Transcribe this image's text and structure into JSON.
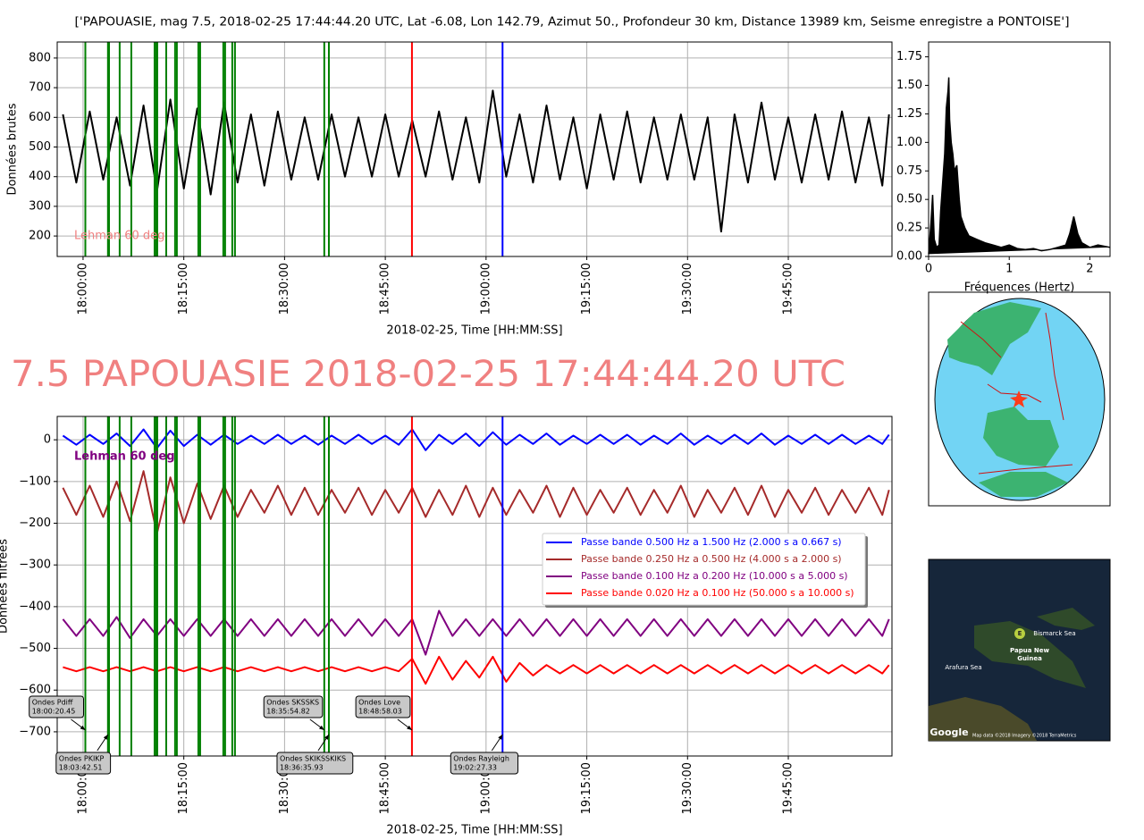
{
  "title": "['PAPOUASIE, mag 7.5, 2018-02-25 17:44:44.20 UTC, Lat -6.08, Lon 142.79, Azimut 50., Profondeur 30 km, Distance 13989 km, Seisme enregistre a PONTOISE']",
  "headline": "7.5 PAPOUASIE 2018-02-25 17:44:44.20 UTC",
  "chart_data": [
    {
      "type": "line",
      "y_label": "Données brutes",
      "x_label": "2018-02-25, Time [HH:MM:SS]",
      "annotation": {
        "text": "Lehman 60 deg",
        "color": "#f08080"
      },
      "x": [
        "17:57:00",
        "17:59:00",
        "18:01:00",
        "18:03:00",
        "18:05:00",
        "18:07:00",
        "18:09:00",
        "18:11:00",
        "18:13:00",
        "18:15:00",
        "18:17:00",
        "18:19:00",
        "18:21:00",
        "18:23:00",
        "18:25:00",
        "18:27:00",
        "18:29:00",
        "18:31:00",
        "18:33:00",
        "18:35:00",
        "18:37:00",
        "18:39:00",
        "18:41:00",
        "18:43:00",
        "18:45:00",
        "18:47:00",
        "18:49:00",
        "18:51:00",
        "18:53:00",
        "18:55:00",
        "18:57:00",
        "18:59:00",
        "19:01:00",
        "19:03:00",
        "19:05:00",
        "19:07:00",
        "19:09:00",
        "19:11:00",
        "19:13:00",
        "19:15:00",
        "19:17:00",
        "19:19:00",
        "19:21:00",
        "19:23:00",
        "19:25:00",
        "19:27:00",
        "19:29:00",
        "19:31:00",
        "19:33:00",
        "19:35:00",
        "19:37:00",
        "19:39:00",
        "19:41:00",
        "19:43:00",
        "19:45:00",
        "19:47:00",
        "19:49:00",
        "19:51:00",
        "19:53:00",
        "19:55:00",
        "19:57:00",
        "19:59:00",
        "20:00:00"
      ],
      "series": [
        {
          "color": "#000000",
          "values": [
            610,
            380,
            620,
            390,
            600,
            370,
            640,
            350,
            660,
            360,
            630,
            340,
            650,
            380,
            610,
            370,
            620,
            390,
            600,
            390,
            610,
            400,
            600,
            400,
            610,
            400,
            590,
            400,
            620,
            390,
            600,
            380,
            690,
            400,
            610,
            380,
            640,
            390,
            600,
            360,
            610,
            390,
            620,
            380,
            600,
            390,
            610,
            390,
            600,
            215,
            610,
            380,
            650,
            390,
            600,
            380,
            610,
            390,
            620,
            380,
            600,
            370,
            610
          ]
        }
      ],
      "xlim": [
        "17:56:09",
        "20:00:26"
      ],
      "xticks": [
        "18:00:00",
        "18:15:00",
        "18:30:00",
        "18:45:00",
        "19:00:00",
        "19:15:00",
        "19:30:00",
        "19:45:00"
      ],
      "ylim": [
        131,
        854
      ],
      "yticks": [
        200,
        300,
        400,
        500,
        600,
        700,
        800
      ],
      "grid": true
    },
    {
      "type": "area",
      "x_label": "Fréquences (Hertz)",
      "color": "#000000",
      "x": [
        0,
        0.03,
        0.05,
        0.07,
        0.1,
        0.13,
        0.15,
        0.18,
        0.2,
        0.22,
        0.24,
        0.25,
        0.26,
        0.28,
        0.3,
        0.32,
        0.35,
        0.38,
        0.4,
        0.45,
        0.5,
        0.6,
        0.7,
        0.8,
        0.9,
        1.0,
        1.1,
        1.2,
        1.3,
        1.4,
        1.5,
        1.6,
        1.7,
        1.75,
        1.8,
        1.85,
        1.9,
        2.0,
        2.1,
        2.25
      ],
      "values": [
        0.02,
        0.3,
        0.54,
        0.15,
        0.08,
        0.1,
        0.4,
        0.7,
        0.9,
        1.3,
        1.45,
        1.57,
        1.2,
        1.0,
        0.9,
        0.75,
        0.8,
        0.5,
        0.35,
        0.25,
        0.18,
        0.15,
        0.12,
        0.1,
        0.08,
        0.1,
        0.07,
        0.06,
        0.07,
        0.05,
        0.06,
        0.08,
        0.1,
        0.2,
        0.35,
        0.2,
        0.12,
        0.08,
        0.1,
        0.08
      ],
      "xlim": [
        0,
        2.25
      ],
      "xticks": [
        0,
        1,
        2
      ],
      "ylim": [
        0,
        1.88
      ],
      "yticks": [
        {
          "value": 0,
          "label": "0.00"
        },
        0.25,
        {
          "value": 0.5,
          "label": "0.50"
        },
        0.75,
        {
          "value": 1,
          "label": "1.00"
        },
        1.25,
        {
          "value": 1.5,
          "label": "1.50"
        },
        1.75
      ],
      "grid": false
    },
    {
      "type": "line",
      "y_label": "Données filtrées",
      "x_label": "2018-02-25, Time [HH:MM:SS]",
      "annotation": {
        "text": "Lehman 60 deg",
        "color": "#800080"
      },
      "x": [
        "17:57:00",
        "17:59:00",
        "18:01:00",
        "18:03:00",
        "18:05:00",
        "18:07:00",
        "18:09:00",
        "18:11:00",
        "18:13:00",
        "18:15:00",
        "18:17:00",
        "18:19:00",
        "18:21:00",
        "18:23:00",
        "18:25:00",
        "18:27:00",
        "18:29:00",
        "18:31:00",
        "18:33:00",
        "18:35:00",
        "18:37:00",
        "18:39:00",
        "18:41:00",
        "18:43:00",
        "18:45:00",
        "18:47:00",
        "18:49:00",
        "18:51:00",
        "18:53:00",
        "18:55:00",
        "18:57:00",
        "18:59:00",
        "19:01:00",
        "19:03:00",
        "19:05:00",
        "19:07:00",
        "19:09:00",
        "19:11:00",
        "19:13:00",
        "19:15:00",
        "19:17:00",
        "19:19:00",
        "19:21:00",
        "19:23:00",
        "19:25:00",
        "19:27:00",
        "19:29:00",
        "19:31:00",
        "19:33:00",
        "19:35:00",
        "19:37:00",
        "19:39:00",
        "19:41:00",
        "19:43:00",
        "19:45:00",
        "19:47:00",
        "19:49:00",
        "19:51:00",
        "19:53:00",
        "19:55:00",
        "19:57:00",
        "19:59:00",
        "20:00:00"
      ],
      "series": [
        {
          "name": "Passe bande 0.500 Hz a 1.500 Hz (2.000 s a 0.667 s)",
          "color": "#0000ff",
          "values": [
            10,
            -12,
            12,
            -10,
            15,
            -15,
            25,
            -20,
            22,
            -15,
            12,
            -12,
            12,
            -10,
            10,
            -10,
            12,
            -10,
            10,
            -12,
            10,
            -10,
            12,
            -10,
            10,
            -12,
            25,
            -25,
            12,
            -10,
            15,
            -15,
            18,
            -12,
            12,
            -10,
            15,
            -12,
            10,
            -10,
            12,
            -10,
            12,
            -12,
            10,
            -10,
            15,
            -12,
            10,
            -10,
            12,
            -10,
            15,
            -12,
            10,
            -10,
            12,
            -10,
            12,
            -10,
            10,
            -10,
            12
          ]
        },
        {
          "name": "Passe bande 0.250 Hz a 0.500 Hz (4.000 s a 2.000 s)",
          "color": "#a52a2a",
          "values": [
            -115,
            -180,
            -110,
            -185,
            -100,
            -195,
            -75,
            -225,
            -90,
            -200,
            -105,
            -190,
            -110,
            -185,
            -120,
            -175,
            -110,
            -180,
            -115,
            -180,
            -120,
            -175,
            -115,
            -180,
            -120,
            -175,
            -115,
            -185,
            -120,
            -180,
            -110,
            -185,
            -115,
            -180,
            -120,
            -175,
            -110,
            -185,
            -115,
            -180,
            -120,
            -175,
            -115,
            -180,
            -120,
            -175,
            -110,
            -185,
            -120,
            -175,
            -115,
            -180,
            -110,
            -185,
            -120,
            -175,
            -115,
            -180,
            -120,
            -175,
            -115,
            -180,
            -120
          ]
        },
        {
          "name": "Passe bande 0.100 Hz a 0.200 Hz (10.000 s a 5.000 s)",
          "color": "#800080",
          "values": [
            -430,
            -470,
            -430,
            -470,
            -425,
            -475,
            -430,
            -470,
            -430,
            -470,
            -430,
            -470,
            -430,
            -470,
            -430,
            -470,
            -430,
            -470,
            -430,
            -470,
            -430,
            -470,
            -430,
            -470,
            -430,
            -470,
            -430,
            -515,
            -410,
            -470,
            -430,
            -470,
            -430,
            -470,
            -430,
            -470,
            -430,
            -470,
            -430,
            -470,
            -430,
            -470,
            -430,
            -470,
            -430,
            -470,
            -430,
            -470,
            -430,
            -470,
            -430,
            -470,
            -430,
            -470,
            -430,
            -470,
            -430,
            -470,
            -430,
            -470,
            -430,
            -470,
            -430
          ]
        },
        {
          "name": "Passe bande 0.020 Hz a 0.100 Hz (50.000 s a 10.000 s)",
          "color": "#ff0000",
          "values": [
            -545,
            -555,
            -545,
            -555,
            -545,
            -555,
            -545,
            -555,
            -545,
            -555,
            -545,
            -555,
            -545,
            -555,
            -545,
            -555,
            -545,
            -555,
            -545,
            -555,
            -545,
            -555,
            -545,
            -555,
            -545,
            -555,
            -525,
            -585,
            -520,
            -575,
            -530,
            -570,
            -520,
            -580,
            -535,
            -565,
            -540,
            -560,
            -540,
            -560,
            -540,
            -560,
            -540,
            -560,
            -540,
            -560,
            -540,
            -560,
            -540,
            -560,
            -540,
            -560,
            -540,
            -560,
            -540,
            -560,
            -540,
            -560,
            -540,
            -560,
            -540,
            -560,
            -540
          ]
        }
      ],
      "legend": "center right",
      "xlim": [
        "17:56:09",
        "20:00:26"
      ],
      "xticks": [
        "18:00:00",
        "18:15:00",
        "18:30:00",
        "18:45:00",
        "19:00:00",
        "19:15:00",
        "19:30:00",
        "19:45:00"
      ],
      "ylim": [
        -758,
        56
      ],
      "yticks": [
        0,
        {
          "value": -100,
          "label": "−100"
        },
        {
          "value": -200,
          "label": "−200"
        },
        {
          "value": -300,
          "label": "−300"
        },
        {
          "value": -400,
          "label": "−400"
        },
        {
          "value": -500,
          "label": "−500"
        },
        {
          "value": -600,
          "label": "−600"
        },
        {
          "value": -700,
          "label": "−700"
        }
      ],
      "grid": true,
      "phase_lines": {
        "color": "#008000",
        "times": [
          "18:03:52",
          "18:05:27",
          "18:07:11",
          "18:10:39",
          "18:10:55",
          "18:11:03",
          "18:12:23",
          "18:13:42",
          "18:13:58",
          "18:17:10",
          "18:17:26",
          "18:20:53",
          "18:21:09",
          "18:22:13",
          "18:22:37"
        ]
      },
      "annotations": [
        {
          "label": "Ondes Pdiff",
          "time": "18:00:20.45",
          "line_color": "#008000"
        },
        {
          "label": "Ondes PKIKP",
          "time": "18:03:42.51",
          "line_color": "#008000"
        },
        {
          "label": "Ondes SKSSKS",
          "time": "18:35:54.82",
          "line_color": "#008000"
        },
        {
          "label": "Ondes SKIKSSKIKS",
          "time": "18:36:35.93",
          "line_color": "#008000"
        },
        {
          "label": "Ondes Love",
          "time": "18:48:58.03",
          "line_color": "#ff0000"
        },
        {
          "label": "Ondes Rayleigh",
          "time": "19:02:27.33",
          "line_color": "#0000ff"
        }
      ]
    }
  ],
  "maps": {
    "sea_north": "Bismarck Sea",
    "country": [
      "Papua New",
      "Guinea"
    ],
    "sea_south": "Arafura Sea",
    "marker": "E",
    "logo": "Google",
    "attribution": "Map data ©2018 Imagery ©2018 TerraMetrics"
  }
}
